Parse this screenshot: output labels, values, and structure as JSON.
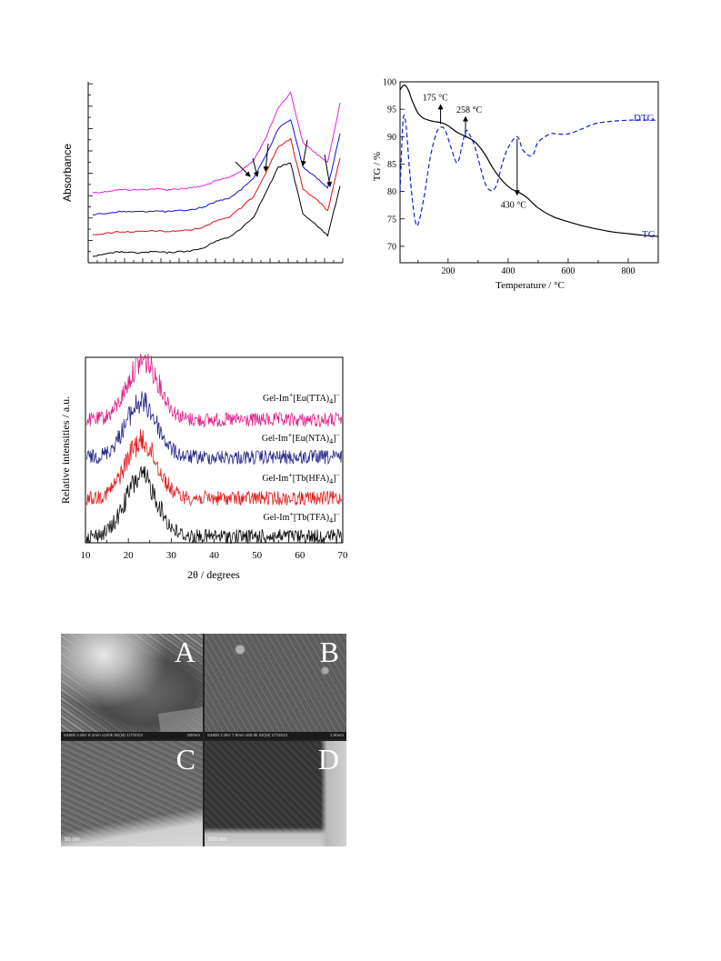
{
  "chart_data": [
    {
      "type": "line",
      "panel": "ftir",
      "title": "",
      "xlabel": "",
      "ylabel": "Absorbance",
      "x_tick_labels_shown": false,
      "y_tick_labels_shown": false,
      "x": [
        0,
        5,
        10,
        15,
        20,
        25,
        30,
        35,
        40,
        45,
        50,
        55,
        60,
        65,
        70,
        75,
        80,
        85,
        90,
        95,
        100
      ],
      "series": [
        {
          "color": "#e020e0",
          "values": [
            0.0,
            0.01,
            0.03,
            0.03,
            0.03,
            0.04,
            0.03,
            0.04,
            0.05,
            0.07,
            0.12,
            0.15,
            0.22,
            0.32,
            0.55,
            0.85,
            1.0,
            0.5,
            0.4,
            0.3,
            0.9
          ]
        },
        {
          "color": "#1010e0",
          "values": [
            0.0,
            0.01,
            0.03,
            0.03,
            0.03,
            0.04,
            0.03,
            0.04,
            0.05,
            0.08,
            0.14,
            0.17,
            0.26,
            0.38,
            0.62,
            0.9,
            1.0,
            0.5,
            0.4,
            0.28,
            0.85
          ]
        },
        {
          "color": "#e01010",
          "values": [
            0.0,
            0.01,
            0.03,
            0.03,
            0.03,
            0.04,
            0.03,
            0.04,
            0.05,
            0.08,
            0.15,
            0.18,
            0.28,
            0.4,
            0.65,
            0.92,
            1.0,
            0.48,
            0.38,
            0.25,
            0.8
          ]
        },
        {
          "color": "#000000",
          "values": [
            0.0,
            0.02,
            0.05,
            0.04,
            0.04,
            0.05,
            0.04,
            0.05,
            0.06,
            0.09,
            0.17,
            0.2,
            0.3,
            0.42,
            0.68,
            0.95,
            1.0,
            0.45,
            0.35,
            0.22,
            0.75
          ]
        }
      ],
      "annotations": [
        "arrow",
        "arrow",
        "arrow",
        "arrow",
        "arrow"
      ]
    },
    {
      "type": "line",
      "panel": "tg",
      "title": "",
      "xlabel": "Temperature / °C",
      "ylabel": "TG / %",
      "xlim": [
        40,
        900
      ],
      "ylim": [
        67,
        100
      ],
      "x_ticks": [
        200,
        400,
        600,
        800
      ],
      "y_ticks": [
        70,
        75,
        80,
        85,
        90,
        95,
        100
      ],
      "series": [
        {
          "name": "TG",
          "color": "#000000",
          "style": "solid",
          "x": [
            40,
            50,
            60,
            70,
            80,
            100,
            120,
            150,
            180,
            200,
            230,
            260,
            290,
            320,
            350,
            380,
            410,
            430,
            460,
            500,
            550,
            600,
            650,
            700,
            750,
            800,
            850,
            900
          ],
          "y": [
            98.5,
            99.3,
            99.2,
            98.2,
            96.6,
            94.3,
            93.3,
            92.8,
            92.5,
            92.0,
            90.8,
            90.0,
            89.0,
            87.0,
            84.2,
            82.0,
            80.5,
            80.0,
            79.0,
            77.0,
            75.4,
            74.5,
            73.7,
            73.1,
            72.6,
            72.3,
            72.0,
            71.8
          ]
        },
        {
          "name": "DTG",
          "color": "#1020d0",
          "style": "dashed",
          "x": [
            40,
            50,
            60,
            70,
            80,
            90,
            100,
            120,
            140,
            160,
            175,
            190,
            210,
            230,
            245,
            258,
            270,
            290,
            320,
            340,
            360,
            380,
            400,
            430,
            450,
            480,
            500,
            540,
            560,
            600,
            650,
            700,
            800,
            900
          ],
          "y": [
            80,
            93,
            92,
            85,
            79,
            74.8,
            74,
            79,
            86,
            90.5,
            91.7,
            91.2,
            88,
            85.2,
            88,
            91,
            90.5,
            88,
            82,
            80.2,
            81,
            85,
            88,
            90,
            87.5,
            86.5,
            89,
            90.5,
            90.5,
            90.5,
            91.5,
            92.5,
            93,
            93
          ]
        }
      ],
      "annotations": [
        {
          "text": "175 °C",
          "x": 175
        },
        {
          "text": "258 °C",
          "x": 258
        },
        {
          "text": "430 °C",
          "x": 430
        }
      ],
      "series_labels": {
        "dtg": "DTG",
        "tg": "TG"
      }
    },
    {
      "type": "line",
      "panel": "xrd",
      "title": "",
      "xlabel": "2θ / degrees",
      "ylabel": "Relative intensities / a.u.",
      "xlim": [
        10,
        70
      ],
      "x_ticks": [
        10,
        20,
        30,
        40,
        50,
        60,
        70
      ],
      "series": [
        {
          "label_main": "Gel-Im",
          "label_sup": "+",
          "label_rest": "[Eu(TTA)",
          "label_sub": "4",
          "label_end": "]",
          "label_sup2": "−",
          "color": "#e0208a",
          "base": 0,
          "peak_center": 23.5,
          "peak_height": 1.0
        },
        {
          "label_main": "Gel-Im",
          "label_sup": "+",
          "label_rest": "[Eu(NTA)",
          "label_sub": "4",
          "label_end": "]",
          "label_sup2": "−",
          "color": "#28288a",
          "base": 1,
          "peak_center": 23.0,
          "peak_height": 0.95
        },
        {
          "label_main": "Gel-Im",
          "label_sup": "+",
          "label_rest": "[Tb(HFA)",
          "label_sub": "4",
          "label_end": "]",
          "label_sup2": "−",
          "color": "#e02020",
          "base": 2,
          "peak_center": 23.0,
          "peak_height": 1.0
        },
        {
          "label_main": "Gel-Im",
          "label_sup": "+",
          "label_rest": "[Tb(TFA)",
          "label_sub": "4",
          "label_end": "]",
          "label_sup2": "−",
          "color": "#111111",
          "base": 3,
          "peak_center": 23.0,
          "peak_height": 1.0
        }
      ]
    }
  ],
  "micrographs": {
    "panels": [
      {
        "letter": "A",
        "info": "S4800 2.0kV 8.1mm x100k SE(M) 1/7/2013",
        "scale": "500nm"
      },
      {
        "letter": "B",
        "info": "S4800 2.0kV 7.9mm x50.0k SE(M) 1/7/2013",
        "scale": "1.00um"
      },
      {
        "letter": "C",
        "info": "",
        "scale": "50 nm"
      },
      {
        "letter": "D",
        "info": "",
        "scale": "500 nm"
      }
    ]
  }
}
